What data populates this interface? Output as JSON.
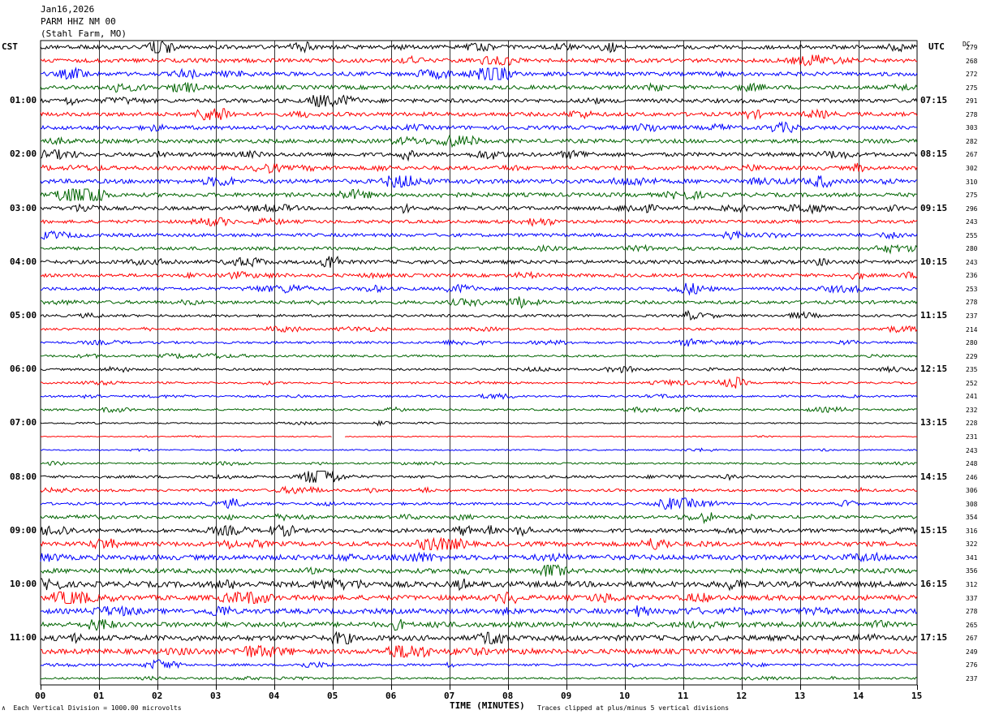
{
  "header": {
    "date": "Jan16,2026",
    "station": "PARM HHZ NM 00",
    "location": "(Stahl Farm, MO)"
  },
  "left_tz": "CST",
  "right_tz": "UTC",
  "dc_header": "DC",
  "chart_data": {
    "type": "line",
    "title": "PARM HHZ NM 00",
    "xlabel": "TIME (MINUTES)",
    "xlim": [
      0,
      15
    ],
    "x_ticks": [
      "00",
      "01",
      "02",
      "03",
      "04",
      "05",
      "06",
      "07",
      "08",
      "09",
      "10",
      "11",
      "12",
      "13",
      "14",
      "15"
    ],
    "trace_colors": [
      "#000000",
      "#ff0000",
      "#0000ff",
      "#006400"
    ],
    "rows_per_hour": 4,
    "left_labels": [
      "01:00",
      "02:00",
      "03:00",
      "04:00",
      "05:00",
      "06:00",
      "07:00",
      "08:00",
      "09:00",
      "10:00",
      "11:00"
    ],
    "right_labels": [
      "07:15",
      "08:15",
      "09:15",
      "10:15",
      "11:15",
      "12:15",
      "13:15",
      "14:15",
      "15:15",
      "16:15",
      "17:15"
    ],
    "dc_values": [
      279,
      268,
      272,
      275,
      291,
      278,
      303,
      282,
      267,
      302,
      310,
      275,
      296,
      243,
      255,
      280,
      243,
      236,
      253,
      278,
      237,
      214,
      280,
      229,
      235,
      252,
      241,
      232,
      228,
      231,
      243,
      248,
      246,
      306,
      308,
      354,
      316,
      322,
      341,
      356,
      312,
      337,
      278,
      265,
      267,
      249,
      276,
      237
    ],
    "trace_amplitude": [
      2.4,
      2.4,
      2.4,
      2.4,
      2.4,
      2.4,
      2.4,
      2.4,
      2.4,
      2.4,
      2.6,
      2.4,
      2.2,
      2.0,
      2.0,
      2.0,
      2.2,
      2.0,
      2.0,
      2.0,
      1.5,
      1.4,
      1.4,
      1.3,
      1.3,
      1.2,
      1.2,
      1.2,
      0.8,
      0.6,
      0.8,
      1.0,
      1.6,
      1.6,
      1.6,
      1.8,
      2.4,
      2.8,
      3.0,
      2.8,
      3.4,
      3.0,
      3.0,
      3.0,
      3.2,
      3.0,
      1.4,
      1.2
    ],
    "gaps": [
      {
        "row": 29,
        "start_min": 5.0,
        "end_min": 5.2
      }
    ],
    "scale_note": "Each Vertical Division = 1000.00 microvolts",
    "clip_note": "Traces clipped at plus/minus 5 vertical divisions"
  }
}
